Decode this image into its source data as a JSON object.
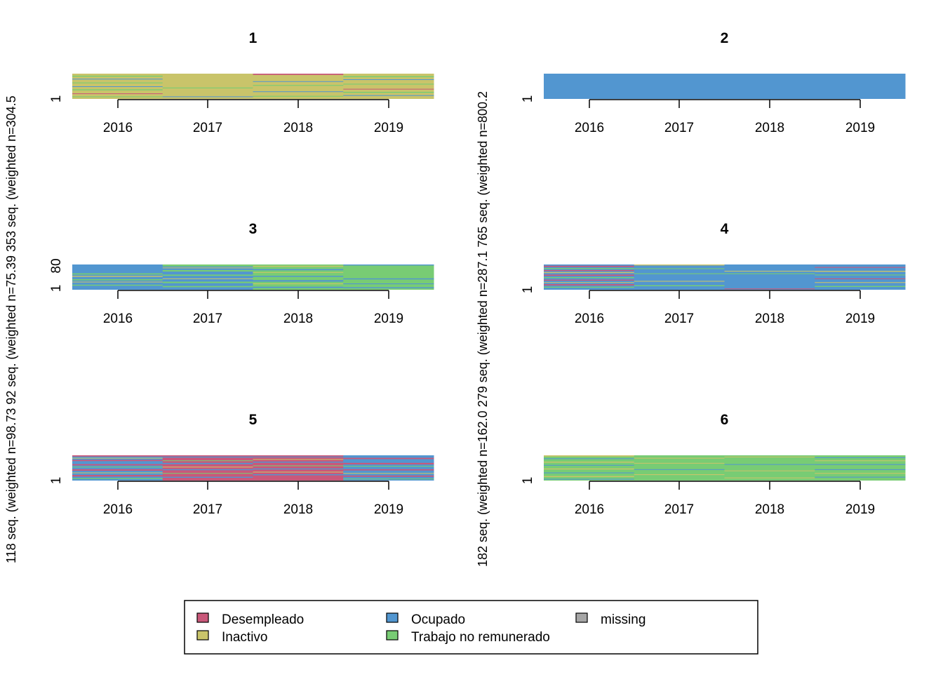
{
  "chart_data": {
    "type": "sequence_index_plot",
    "x_ticks": [
      "2016",
      "2017",
      "2018",
      "2019"
    ],
    "states": [
      {
        "name": "Desempleado",
        "color": "#C9587A"
      },
      {
        "name": "Inactivo",
        "color": "#C9C46A"
      },
      {
        "name": "Ocupado",
        "color": "#5296D0"
      },
      {
        "name": "Trabajo no remunerado",
        "color": "#78CC74"
      },
      {
        "name": "missing",
        "color": "#A6A6A6"
      }
    ],
    "y_axis_text": {
      "left": "118 seq. (weighted n=98.73   92 seq. (weighted n=75.39 353 seq. (weighted n=304.5",
      "right": "182 seq. (weighted n=162.0 279 seq. (weighted n=287.1 765 seq. (weighted n=800.2"
    },
    "panels": [
      {
        "title": "1",
        "y_ticks": [
          "1"
        ],
        "columns": [
          {
            "base": "Inactivo",
            "stripes": [
              [
                "Trabajo no remunerado",
                0.08,
                0.04
              ],
              [
                "Ocupado",
                0.2,
                0.03
              ],
              [
                "Trabajo no remunerado",
                0.35,
                0.03
              ],
              [
                "Ocupado",
                0.5,
                0.02
              ],
              [
                "Trabajo no remunerado",
                0.62,
                0.04
              ],
              [
                "Desempleado",
                0.78,
                0.02
              ],
              [
                "Trabajo no remunerado",
                0.9,
                0.03
              ]
            ]
          },
          {
            "base": "Inactivo",
            "stripes": [
              [
                "Trabajo no remunerado",
                0.55,
                0.03
              ],
              [
                "Ocupado",
                0.9,
                0.02
              ]
            ]
          },
          {
            "base": "Inactivo",
            "stripes": [
              [
                "Desempleado",
                0.0,
                0.05
              ],
              [
                "Ocupado",
                0.3,
                0.02
              ],
              [
                "Trabajo no remunerado",
                0.45,
                0.03
              ],
              [
                "Ocupado",
                0.7,
                0.02
              ],
              [
                "Trabajo no remunerado",
                0.88,
                0.03
              ]
            ]
          },
          {
            "base": "Inactivo",
            "stripes": [
              [
                "Trabajo no remunerado",
                0.1,
                0.04
              ],
              [
                "Ocupado",
                0.22,
                0.03
              ],
              [
                "Trabajo no remunerado",
                0.4,
                0.03
              ],
              [
                "Desempleado",
                0.6,
                0.02
              ],
              [
                "Trabajo no remunerado",
                0.72,
                0.04
              ],
              [
                "Ocupado",
                0.85,
                0.03
              ]
            ]
          }
        ]
      },
      {
        "title": "2",
        "y_ticks": [
          "1"
        ],
        "columns": [
          {
            "base": "Ocupado",
            "stripes": []
          },
          {
            "base": "Ocupado",
            "stripes": []
          },
          {
            "base": "Ocupado",
            "stripes": []
          },
          {
            "base": "Ocupado",
            "stripes": []
          }
        ]
      },
      {
        "title": "3",
        "y_ticks": [
          "1",
          "80"
        ],
        "columns": [
          {
            "base": "Ocupado",
            "stripes": [
              [
                "Trabajo no remunerado",
                0.35,
                0.05
              ],
              [
                "Inactivo",
                0.45,
                0.04
              ],
              [
                "Trabajo no remunerado",
                0.58,
                0.05
              ],
              [
                "Inactivo",
                0.68,
                0.03
              ],
              [
                "Trabajo no remunerado",
                0.8,
                0.04
              ]
            ]
          },
          {
            "base": "Ocupado",
            "stripes": [
              [
                "Trabajo no remunerado",
                0.0,
                0.08
              ],
              [
                "Inactivo",
                0.12,
                0.03
              ],
              [
                "Trabajo no remunerado",
                0.22,
                0.06
              ],
              [
                "Trabajo no remunerado",
                0.4,
                0.05
              ],
              [
                "Inactivo",
                0.55,
                0.03
              ],
              [
                "Trabajo no remunerado",
                0.68,
                0.06
              ],
              [
                "Trabajo no remunerado",
                0.85,
                0.05
              ]
            ]
          },
          {
            "base": "Trabajo no remunerado",
            "stripes": [
              [
                "Inactivo",
                0.05,
                0.04
              ],
              [
                "Ocupado",
                0.18,
                0.05
              ],
              [
                "Inactivo",
                0.3,
                0.03
              ],
              [
                "Ocupado",
                0.45,
                0.04
              ],
              [
                "Ocupado",
                0.62,
                0.06
              ],
              [
                "Inactivo",
                0.75,
                0.03
              ],
              [
                "Ocupado",
                0.88,
                0.05
              ]
            ]
          },
          {
            "base": "Trabajo no remunerado",
            "stripes": [
              [
                "Ocupado",
                0.0,
                0.04
              ],
              [
                "Ocupado",
                0.55,
                0.04
              ],
              [
                "Ocupado",
                0.75,
                0.03
              ],
              [
                "Ocupado",
                0.9,
                0.04
              ]
            ]
          }
        ]
      },
      {
        "title": "4",
        "y_ticks": [
          "1"
        ],
        "columns": [
          {
            "base": "Ocupado",
            "stripes": [
              [
                "Desempleado",
                0.05,
                0.05
              ],
              [
                "Trabajo no remunerado",
                0.14,
                0.04
              ],
              [
                "Desempleado",
                0.22,
                0.04
              ],
              [
                "Inactivo",
                0.3,
                0.04
              ],
              [
                "Desempleado",
                0.4,
                0.05
              ],
              [
                "Trabajo no remunerado",
                0.5,
                0.04
              ],
              [
                "Desempleado",
                0.6,
                0.04
              ],
              [
                "Inactivo",
                0.7,
                0.03
              ],
              [
                "Desempleado",
                0.78,
                0.05
              ],
              [
                "Trabajo no remunerado",
                0.88,
                0.04
              ]
            ]
          },
          {
            "base": "Ocupado",
            "stripes": [
              [
                "Inactivo",
                0.0,
                0.04
              ],
              [
                "Trabajo no remunerado",
                0.15,
                0.03
              ],
              [
                "Trabajo no remunerado",
                0.35,
                0.03
              ],
              [
                "Inactivo",
                0.65,
                0.03
              ],
              [
                "Trabajo no remunerado",
                0.82,
                0.04
              ]
            ]
          },
          {
            "base": "Ocupado",
            "stripes": [
              [
                "Inactivo",
                0.25,
                0.03
              ],
              [
                "Trabajo no remunerado",
                0.35,
                0.03
              ],
              [
                "Desempleado",
                0.95,
                0.03
              ]
            ]
          },
          {
            "base": "Ocupado",
            "stripes": [
              [
                "Desempleado",
                0.1,
                0.03
              ],
              [
                "Inactivo",
                0.25,
                0.04
              ],
              [
                "Trabajo no remunerado",
                0.4,
                0.03
              ],
              [
                "Desempleado",
                0.55,
                0.03
              ],
              [
                "Inactivo",
                0.7,
                0.03
              ],
              [
                "Trabajo no remunerado",
                0.85,
                0.04
              ]
            ]
          }
        ]
      },
      {
        "title": "5",
        "y_ticks": [
          "1"
        ],
        "columns": [
          {
            "base": "Ocupado",
            "stripes": [
              [
                "Desempleado",
                0.0,
                0.05
              ],
              [
                "Inactivo",
                0.1,
                0.03
              ],
              [
                "Desempleado",
                0.18,
                0.05
              ],
              [
                "Desempleado",
                0.35,
                0.05
              ],
              [
                "Trabajo no remunerado",
                0.45,
                0.03
              ],
              [
                "Desempleado",
                0.55,
                0.06
              ],
              [
                "Inactivo",
                0.68,
                0.03
              ],
              [
                "Desempleado",
                0.78,
                0.06
              ],
              [
                "Trabajo no remunerado",
                0.9,
                0.04
              ]
            ]
          },
          {
            "base": "Desempleado",
            "stripes": [
              [
                "Ocupado",
                0.05,
                0.04
              ],
              [
                "Trabajo no remunerado",
                0.2,
                0.03
              ],
              [
                "Ocupado",
                0.3,
                0.05
              ],
              [
                "Inactivo",
                0.45,
                0.03
              ],
              [
                "Ocupado",
                0.55,
                0.04
              ],
              [
                "Trabajo no remunerado",
                0.7,
                0.03
              ],
              [
                "Ocupado",
                0.85,
                0.04
              ]
            ]
          },
          {
            "base": "Desempleado",
            "stripes": [
              [
                "Ocupado",
                0.05,
                0.03
              ],
              [
                "Inactivo",
                0.15,
                0.03
              ],
              [
                "Ocupado",
                0.25,
                0.04
              ],
              [
                "Trabajo no remunerado",
                0.4,
                0.03
              ],
              [
                "Ocupado",
                0.52,
                0.04
              ],
              [
                "Inactivo",
                0.65,
                0.03
              ],
              [
                "Ocupado",
                0.75,
                0.04
              ]
            ]
          },
          {
            "base": "Ocupado",
            "stripes": [
              [
                "Desempleado",
                0.1,
                0.05
              ],
              [
                "Desempleado",
                0.3,
                0.06
              ],
              [
                "Trabajo no remunerado",
                0.42,
                0.03
              ],
              [
                "Desempleado",
                0.55,
                0.05
              ],
              [
                "Inactivo",
                0.7,
                0.03
              ],
              [
                "Desempleado",
                0.8,
                0.05
              ],
              [
                "Trabajo no remunerado",
                0.92,
                0.03
              ]
            ]
          }
        ]
      },
      {
        "title": "6",
        "y_ticks": [
          "1"
        ],
        "columns": [
          {
            "base": "Trabajo no remunerado",
            "stripes": [
              [
                "Inactivo",
                0.0,
                0.05
              ],
              [
                "Ocupado",
                0.12,
                0.03
              ],
              [
                "Inactivo",
                0.25,
                0.04
              ],
              [
                "Ocupado",
                0.38,
                0.03
              ],
              [
                "Inactivo",
                0.52,
                0.04
              ],
              [
                "Ocupado",
                0.68,
                0.03
              ],
              [
                "Inactivo",
                0.82,
                0.04
              ],
              [
                "Ocupado",
                0.93,
                0.03
              ]
            ]
          },
          {
            "base": "Trabajo no remunerado",
            "stripes": [
              [
                "Inactivo",
                0.1,
                0.03
              ],
              [
                "Inactivo",
                0.3,
                0.03
              ],
              [
                "Ocupado",
                0.55,
                0.02
              ],
              [
                "Inactivo",
                0.75,
                0.03
              ]
            ]
          },
          {
            "base": "Trabajo no remunerado",
            "stripes": [
              [
                "Inactivo",
                0.05,
                0.03
              ],
              [
                "Ocupado",
                0.35,
                0.02
              ],
              [
                "Inactivo",
                0.6,
                0.03
              ],
              [
                "Inactivo",
                0.88,
                0.03
              ]
            ]
          },
          {
            "base": "Trabajo no remunerado",
            "stripes": [
              [
                "Ocupado",
                0.08,
                0.03
              ],
              [
                "Inactivo",
                0.2,
                0.03
              ],
              [
                "Ocupado",
                0.35,
                0.03
              ],
              [
                "Ocupado",
                0.55,
                0.03
              ],
              [
                "Inactivo",
                0.7,
                0.03
              ],
              [
                "Ocupado",
                0.85,
                0.03
              ]
            ]
          }
        ]
      }
    ]
  }
}
